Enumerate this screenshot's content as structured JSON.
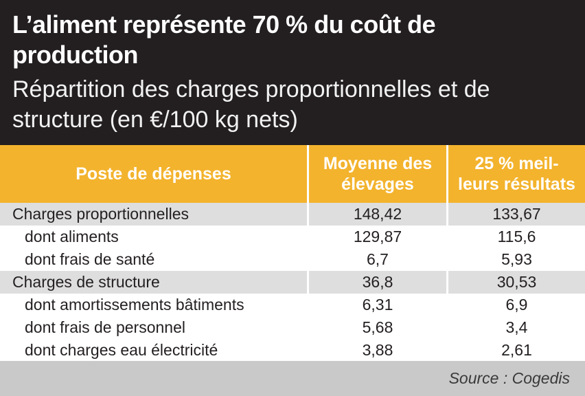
{
  "header": {
    "title": "L’aliment représente 70 % du coût de production",
    "subtitle": "Répartition des charges proportionnelles et de structure (en €/100 kg nets)"
  },
  "table": {
    "columns": [
      "Poste de dépenses",
      "Moyenne des élevages",
      "25 % meil-leurs résultats"
    ],
    "rows": [
      {
        "label": "Charges proportionnelles",
        "moyenne": "148,42",
        "meilleurs": "133,67"
      },
      {
        "label": "dont aliments",
        "moyenne": "129,87",
        "meilleurs": "115,6"
      },
      {
        "label": "dont frais de santé",
        "moyenne": "6,7",
        "meilleurs": "5,93"
      },
      {
        "label": "Charges de structure",
        "moyenne": "36,8",
        "meilleurs": "30,53"
      },
      {
        "label": "dont amortissements bâtiments",
        "moyenne": "6,31",
        "meilleurs": "6,9"
      },
      {
        "label": "dont frais de personnel",
        "moyenne": "5,68",
        "meilleurs": "3,4"
      },
      {
        "label": "dont charges eau électricité",
        "moyenne": "3,88",
        "meilleurs": "2,61"
      }
    ]
  },
  "footer": {
    "source": "Source : Cogedis"
  },
  "colors": {
    "header_bg": "#231f20",
    "table_header_bg": "#f3b32d",
    "major_row_bg": "#dedede",
    "footer_bg": "#c9c9c9"
  }
}
